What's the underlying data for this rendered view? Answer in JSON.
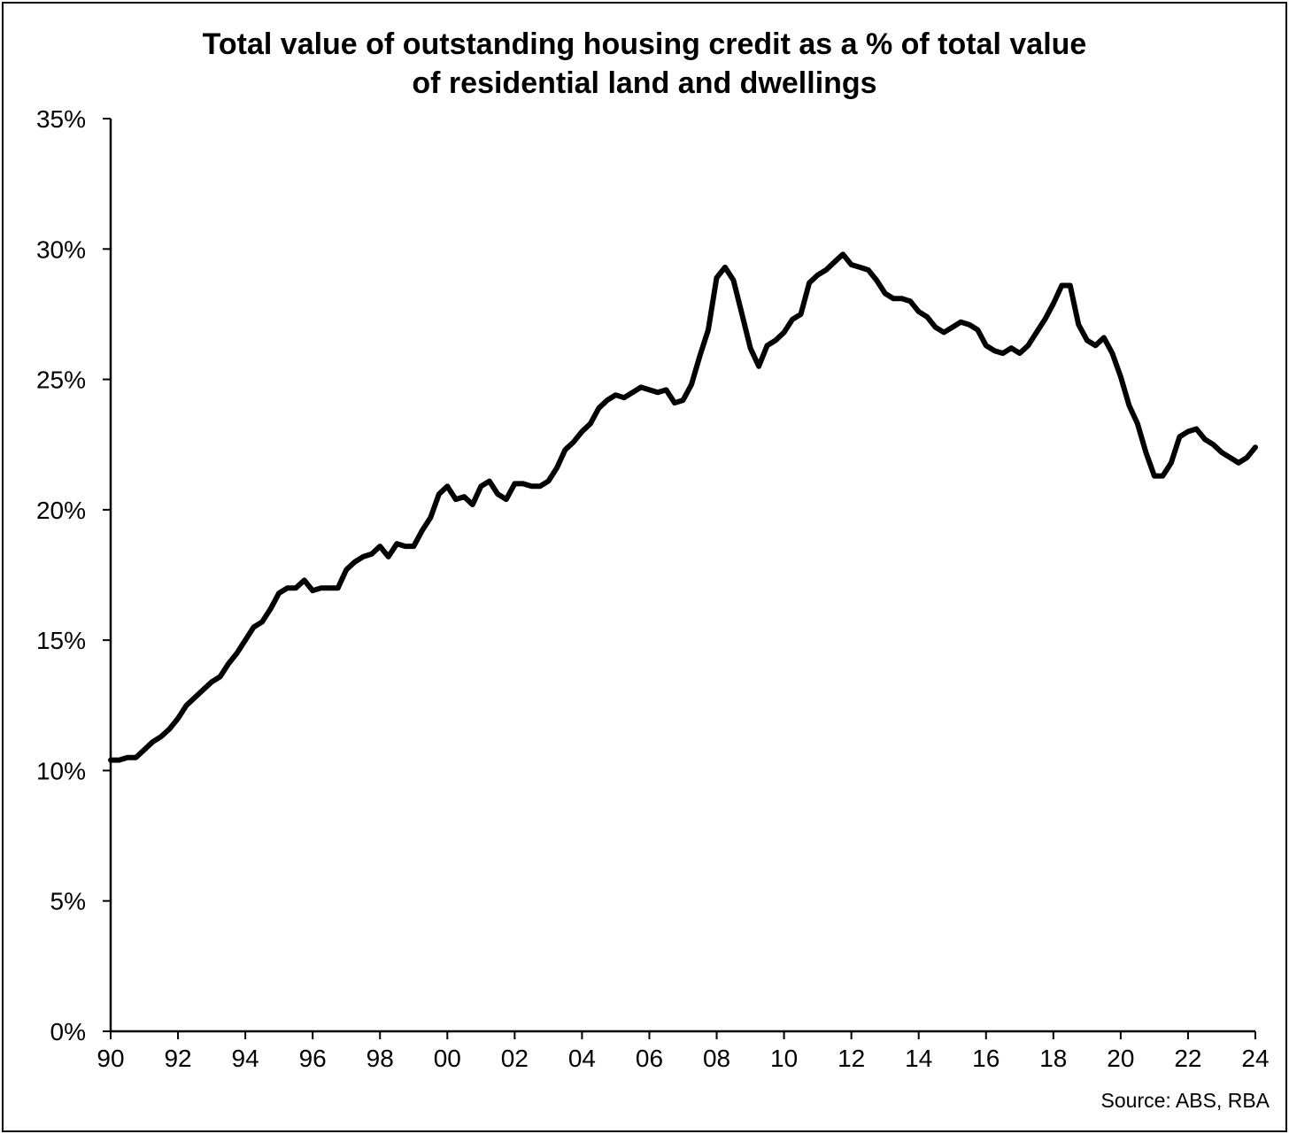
{
  "chart_data": {
    "type": "line",
    "title_lines": [
      "Total value of outstanding housing credit as a % of total value",
      "of residential land and dwellings"
    ],
    "xlabel": "",
    "ylabel": "",
    "xlim": [
      1990,
      2024
    ],
    "ylim": [
      0,
      35
    ],
    "y_ticks": [
      {
        "value": 0,
        "label": "0%"
      },
      {
        "value": 5,
        "label": "5%"
      },
      {
        "value": 10,
        "label": "10%"
      },
      {
        "value": 15,
        "label": "15%"
      },
      {
        "value": 20,
        "label": "20%"
      },
      {
        "value": 25,
        "label": "25%"
      },
      {
        "value": 30,
        "label": "30%"
      },
      {
        "value": 35,
        "label": "35%"
      }
    ],
    "x_ticks": [
      {
        "value": 1990,
        "label": "90"
      },
      {
        "value": 1992,
        "label": "92"
      },
      {
        "value": 1994,
        "label": "94"
      },
      {
        "value": 1996,
        "label": "96"
      },
      {
        "value": 1998,
        "label": "98"
      },
      {
        "value": 2000,
        "label": "00"
      },
      {
        "value": 2002,
        "label": "02"
      },
      {
        "value": 2004,
        "label": "04"
      },
      {
        "value": 2006,
        "label": "06"
      },
      {
        "value": 2008,
        "label": "08"
      },
      {
        "value": 2010,
        "label": "10"
      },
      {
        "value": 2012,
        "label": "12"
      },
      {
        "value": 2014,
        "label": "14"
      },
      {
        "value": 2016,
        "label": "16"
      },
      {
        "value": 2018,
        "label": "18"
      },
      {
        "value": 2020,
        "label": "20"
      },
      {
        "value": 2022,
        "label": "22"
      },
      {
        "value": 2024,
        "label": "24"
      }
    ],
    "grid": false,
    "legend": "none",
    "line_color": "#000000",
    "series": [
      {
        "x": [
          1990.0,
          1990.25,
          1990.5,
          1990.75,
          1991.0,
          1991.25,
          1991.5,
          1991.75,
          1992.0,
          1992.25,
          1992.5,
          1992.75,
          1993.0,
          1993.25,
          1993.5,
          1993.75,
          1994.0,
          1994.25,
          1994.5,
          1994.75,
          1995.0,
          1995.25,
          1995.5,
          1995.75,
          1996.0,
          1996.25,
          1996.5,
          1996.75,
          1997.0,
          1997.25,
          1997.5,
          1997.75,
          1998.0,
          1998.25,
          1998.5,
          1998.75,
          1999.0,
          1999.25,
          1999.5,
          1999.75,
          2000.0,
          2000.25,
          2000.5,
          2000.75,
          2001.0,
          2001.25,
          2001.5,
          2001.75,
          2002.0,
          2002.25,
          2002.5,
          2002.75,
          2003.0,
          2003.25,
          2003.5,
          2003.75,
          2004.0,
          2004.25,
          2004.5,
          2004.75,
          2005.0,
          2005.25,
          2005.5,
          2005.75,
          2006.0,
          2006.25,
          2006.5,
          2006.75,
          2007.0,
          2007.25,
          2007.5,
          2007.75,
          2008.0,
          2008.25,
          2008.5,
          2008.75,
          2009.0,
          2009.25,
          2009.5,
          2009.75,
          2010.0,
          2010.25,
          2010.5,
          2010.75,
          2011.0,
          2011.25,
          2011.5,
          2011.75,
          2012.0,
          2012.25,
          2012.5,
          2012.75,
          2013.0,
          2013.25,
          2013.5,
          2013.75,
          2014.0,
          2014.25,
          2014.5,
          2014.75,
          2015.0,
          2015.25,
          2015.5,
          2015.75,
          2016.0,
          2016.25,
          2016.5,
          2016.75,
          2017.0,
          2017.25,
          2017.5,
          2017.75,
          2018.0,
          2018.25,
          2018.5,
          2018.75,
          2019.0,
          2019.25,
          2019.5,
          2019.75,
          2020.0,
          2020.25,
          2020.5,
          2020.75,
          2021.0,
          2021.25,
          2021.5,
          2021.75,
          2022.0,
          2022.25,
          2022.5,
          2022.75,
          2023.0,
          2023.25,
          2023.5,
          2023.75,
          2024.0
        ],
        "y": [
          10.4,
          10.4,
          10.5,
          10.5,
          10.8,
          11.1,
          11.3,
          11.6,
          12.0,
          12.5,
          12.8,
          13.1,
          13.4,
          13.6,
          14.1,
          14.5,
          15.0,
          15.5,
          15.7,
          16.2,
          16.8,
          17.0,
          17.0,
          17.3,
          16.9,
          17.0,
          17.0,
          17.0,
          17.7,
          18.0,
          18.2,
          18.3,
          18.6,
          18.2,
          18.7,
          18.6,
          18.6,
          19.2,
          19.7,
          20.6,
          20.9,
          20.4,
          20.5,
          20.2,
          20.9,
          21.1,
          20.6,
          20.4,
          21.0,
          21.0,
          20.9,
          20.9,
          21.1,
          21.6,
          22.3,
          22.6,
          23.0,
          23.3,
          23.9,
          24.2,
          24.4,
          24.3,
          24.5,
          24.7,
          24.6,
          24.5,
          24.6,
          24.1,
          24.2,
          24.8,
          25.9,
          26.9,
          28.9,
          29.3,
          28.8,
          27.5,
          26.2,
          25.5,
          26.3,
          26.5,
          26.8,
          27.3,
          27.5,
          28.7,
          29.0,
          29.2,
          29.5,
          29.8,
          29.4,
          29.3,
          29.2,
          28.8,
          28.3,
          28.1,
          28.1,
          28.0,
          27.6,
          27.4,
          27.0,
          26.8,
          27.0,
          27.2,
          27.1,
          26.9,
          26.3,
          26.1,
          26.0,
          26.2,
          26.0,
          26.3,
          26.8,
          27.3,
          27.9,
          28.6,
          28.6,
          27.1,
          26.5,
          26.3,
          26.6,
          26.0,
          25.1,
          24.0,
          23.3,
          22.2,
          21.3,
          21.3,
          21.8,
          22.8,
          23.0,
          23.1,
          22.7,
          22.5,
          22.2,
          22.0,
          21.8,
          22.0,
          22.4
        ]
      }
    ]
  },
  "source": "Source: ABS, RBA"
}
